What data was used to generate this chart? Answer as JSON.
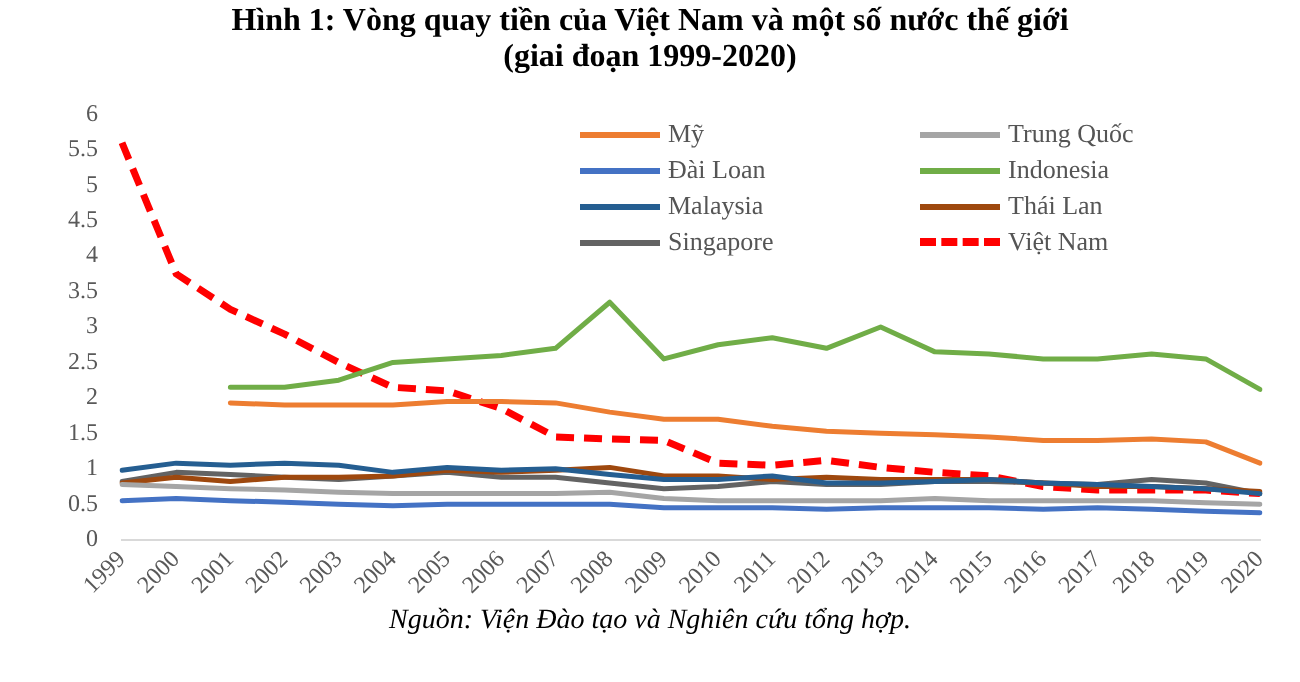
{
  "chart_data": {
    "type": "line",
    "title": "Hình 1: Vòng quay tiền của Việt Nam và một số nước thế giới",
    "subtitle": "(giai đoạn 1999-2020)",
    "categories": [
      "1999",
      "2000",
      "2001",
      "2002",
      "2003",
      "2004",
      "2005",
      "2006",
      "2007",
      "2008",
      "2009",
      "2010",
      "2011",
      "2012",
      "2013",
      "2014",
      "2015",
      "2016",
      "2017",
      "2018",
      "2019",
      "2020"
    ],
    "ylim": [
      0,
      6
    ],
    "yticks": [
      0,
      0.5,
      1,
      1.5,
      2,
      2.5,
      3,
      3.5,
      4,
      4.5,
      5,
      5.5,
      6
    ],
    "grid": false,
    "legend": "top right",
    "marker": "none",
    "annotations": [
      "Nguồn: Viện Đào tạo và Nghiên cứu tổng hợp."
    ],
    "series": [
      {
        "name": "Mỹ",
        "color": "#ed7d31",
        "values": [
          null,
          null,
          1.93,
          1.9,
          1.9,
          1.9,
          1.95,
          1.95,
          1.93,
          1.8,
          1.7,
          1.7,
          1.6,
          1.53,
          1.5,
          1.48,
          1.45,
          1.4,
          1.4,
          1.42,
          1.38,
          1.08
        ]
      },
      {
        "name": "Trung Quốc",
        "color": "#a5a5a5",
        "values": [
          0.78,
          0.75,
          0.72,
          0.7,
          0.67,
          0.65,
          0.65,
          0.65,
          0.65,
          0.67,
          0.58,
          0.55,
          0.55,
          0.55,
          0.55,
          0.58,
          0.55,
          0.55,
          0.55,
          0.55,
          0.52,
          0.5
        ]
      },
      {
        "name": "Đài Loan",
        "color": "#4472c4",
        "values": [
          0.55,
          0.58,
          0.55,
          0.53,
          0.5,
          0.48,
          0.5,
          0.5,
          0.5,
          0.5,
          0.45,
          0.45,
          0.45,
          0.43,
          0.45,
          0.45,
          0.45,
          0.43,
          0.45,
          0.43,
          0.4,
          0.38
        ]
      },
      {
        "name": "Indonesia",
        "color": "#70ad47",
        "values": [
          null,
          null,
          2.15,
          2.15,
          2.25,
          2.5,
          2.55,
          2.6,
          2.7,
          3.35,
          2.55,
          2.75,
          2.85,
          2.7,
          3.0,
          2.65,
          2.62,
          2.55,
          2.55,
          2.62,
          2.55,
          2.12
        ]
      },
      {
        "name": "Malaysia",
        "color": "#255e91",
        "values": [
          0.98,
          1.08,
          1.05,
          1.08,
          1.05,
          0.95,
          1.02,
          0.98,
          1.0,
          0.92,
          0.85,
          0.85,
          0.9,
          0.8,
          0.8,
          0.82,
          0.85,
          0.8,
          0.78,
          0.75,
          0.72,
          0.65
        ]
      },
      {
        "name": "Thái Lan",
        "color": "#9e480e",
        "values": [
          0.8,
          0.88,
          0.82,
          0.88,
          0.88,
          0.9,
          0.98,
          0.95,
          0.98,
          1.02,
          0.9,
          0.9,
          0.85,
          0.88,
          0.85,
          0.85,
          0.85,
          0.8,
          0.75,
          0.75,
          0.72,
          0.68
        ]
      },
      {
        "name": "Singapore",
        "color": "#636363",
        "values": [
          0.82,
          0.95,
          0.92,
          0.88,
          0.85,
          0.9,
          0.95,
          0.88,
          0.88,
          0.8,
          0.72,
          0.75,
          0.82,
          0.78,
          0.78,
          0.82,
          0.82,
          0.8,
          0.78,
          0.85,
          0.8,
          0.65
        ]
      },
      {
        "name": "Việt Nam",
        "color": "#ff0000",
        "line_style": "dashed",
        "values": [
          5.6,
          3.75,
          3.25,
          2.9,
          2.5,
          2.15,
          2.1,
          1.85,
          1.45,
          1.42,
          1.4,
          1.08,
          1.05,
          1.12,
          1.02,
          0.95,
          0.9,
          0.75,
          0.7,
          0.7,
          0.7,
          0.65
        ]
      }
    ]
  }
}
